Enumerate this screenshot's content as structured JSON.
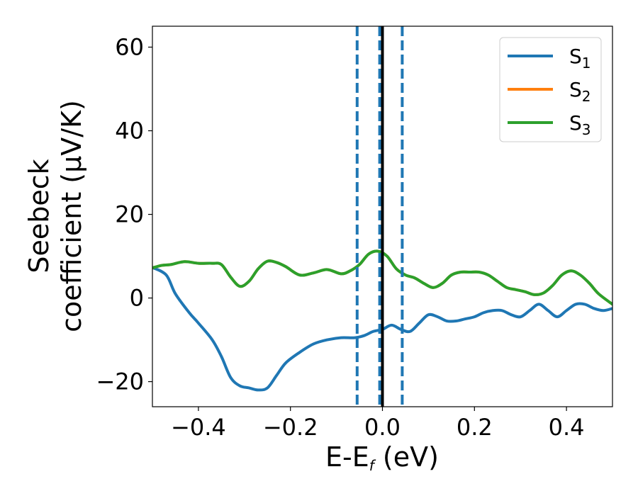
{
  "chart_data": {
    "type": "line",
    "xlabel": {
      "main": "E-E",
      "sub": "f",
      "unit": " (eV)"
    },
    "ylabel": {
      "line1": "Seebeck",
      "line2": "coefficient  (μV/K)"
    },
    "xlim": [
      -0.5,
      0.5
    ],
    "ylim": [
      -26,
      65
    ],
    "xticks": [
      -0.4,
      -0.2,
      0.0,
      0.2,
      0.4
    ],
    "xtick_labels": [
      "−0.4",
      "−0.2",
      "0.0",
      "0.2",
      "0.4"
    ],
    "yticks": [
      -20,
      0,
      20,
      40,
      60
    ],
    "ytick_labels": [
      "−20",
      "0",
      "20",
      "40",
      "60"
    ],
    "grid": false,
    "legend_position": "top-right",
    "vlines": [
      {
        "x": -0.055,
        "style": "dashed",
        "color": "#1f77b4"
      },
      {
        "x": -0.006,
        "style": "dashed",
        "color": "#1f77b4"
      },
      {
        "x": 0.0,
        "style": "solid",
        "color": "#000000"
      },
      {
        "x": 0.043,
        "style": "dashed",
        "color": "#1f77b4"
      }
    ],
    "series": [
      {
        "name": "S",
        "sub": "1",
        "color": "#1f77b4",
        "x": [
          -0.5,
          -0.47,
          -0.45,
          -0.42,
          -0.4,
          -0.37,
          -0.35,
          -0.33,
          -0.31,
          -0.29,
          -0.27,
          -0.25,
          -0.23,
          -0.21,
          -0.18,
          -0.15,
          -0.12,
          -0.09,
          -0.06,
          -0.04,
          -0.02,
          0.0,
          0.02,
          0.04,
          0.06,
          0.08,
          0.1,
          0.12,
          0.14,
          0.16,
          0.18,
          0.2,
          0.22,
          0.24,
          0.26,
          0.28,
          0.3,
          0.32,
          0.34,
          0.36,
          0.38,
          0.4,
          0.42,
          0.44,
          0.46,
          0.48,
          0.5
        ],
        "y": [
          7.3,
          5.5,
          1.0,
          -3.5,
          -6.0,
          -10.0,
          -14.0,
          -19.0,
          -21.0,
          -21.5,
          -22.0,
          -21.5,
          -18.5,
          -15.5,
          -13.0,
          -11.0,
          -10.0,
          -9.5,
          -9.5,
          -9.0,
          -8.0,
          -7.5,
          -6.5,
          -7.5,
          -8.0,
          -6.0,
          -4.0,
          -4.5,
          -5.5,
          -5.5,
          -5.0,
          -4.5,
          -3.5,
          -3.0,
          -3.0,
          -4.0,
          -4.5,
          -3.0,
          -1.5,
          -3.0,
          -4.5,
          -3.0,
          -1.5,
          -1.5,
          -2.5,
          -3.0,
          -2.5
        ]
      },
      {
        "name": "S",
        "sub": "2",
        "color": "#ff7f0e",
        "x": [
          -0.5,
          -0.48,
          -0.46,
          -0.43,
          -0.4,
          -0.37,
          -0.35,
          -0.33,
          -0.31,
          -0.29,
          -0.27,
          -0.25,
          -0.23,
          -0.21,
          -0.18,
          -0.15,
          -0.12,
          -0.09,
          -0.07,
          -0.05,
          -0.03,
          -0.01,
          0.01,
          0.03,
          0.05,
          0.07,
          0.09,
          0.11,
          0.13,
          0.15,
          0.17,
          0.19,
          0.21,
          0.23,
          0.25,
          0.27,
          0.29,
          0.31,
          0.33,
          0.35,
          0.37,
          0.39,
          0.41,
          0.43,
          0.45,
          0.47,
          0.5
        ],
        "y": [
          7.2,
          7.8,
          8.0,
          8.7,
          8.3,
          8.3,
          8.0,
          5.0,
          2.8,
          4.0,
          7.0,
          8.8,
          8.5,
          7.5,
          5.5,
          6.0,
          6.8,
          5.8,
          6.5,
          8.0,
          10.5,
          11.2,
          10.0,
          7.0,
          5.5,
          4.8,
          3.5,
          2.5,
          3.5,
          5.5,
          6.2,
          6.2,
          6.2,
          5.5,
          4.0,
          2.5,
          2.0,
          1.5,
          0.8,
          1.2,
          3.0,
          5.5,
          6.5,
          5.5,
          3.5,
          1.0,
          -1.5
        ]
      },
      {
        "name": "S",
        "sub": "3",
        "color": "#2ca02c",
        "x": [
          -0.5,
          -0.48,
          -0.46,
          -0.43,
          -0.4,
          -0.37,
          -0.35,
          -0.33,
          -0.31,
          -0.29,
          -0.27,
          -0.25,
          -0.23,
          -0.21,
          -0.18,
          -0.15,
          -0.12,
          -0.09,
          -0.07,
          -0.05,
          -0.03,
          -0.01,
          0.01,
          0.03,
          0.05,
          0.07,
          0.09,
          0.11,
          0.13,
          0.15,
          0.17,
          0.19,
          0.21,
          0.23,
          0.25,
          0.27,
          0.29,
          0.31,
          0.33,
          0.35,
          0.37,
          0.39,
          0.41,
          0.43,
          0.45,
          0.47,
          0.5
        ],
        "y": [
          7.2,
          7.8,
          8.0,
          8.7,
          8.3,
          8.3,
          8.0,
          5.0,
          2.8,
          4.0,
          7.0,
          8.8,
          8.5,
          7.5,
          5.5,
          6.0,
          6.8,
          5.8,
          6.5,
          8.0,
          10.5,
          11.2,
          10.0,
          7.0,
          5.5,
          4.8,
          3.5,
          2.5,
          3.5,
          5.5,
          6.2,
          6.2,
          6.2,
          5.5,
          4.0,
          2.5,
          2.0,
          1.5,
          0.8,
          1.2,
          3.0,
          5.5,
          6.5,
          5.5,
          3.5,
          1.0,
          -1.5
        ]
      }
    ]
  }
}
